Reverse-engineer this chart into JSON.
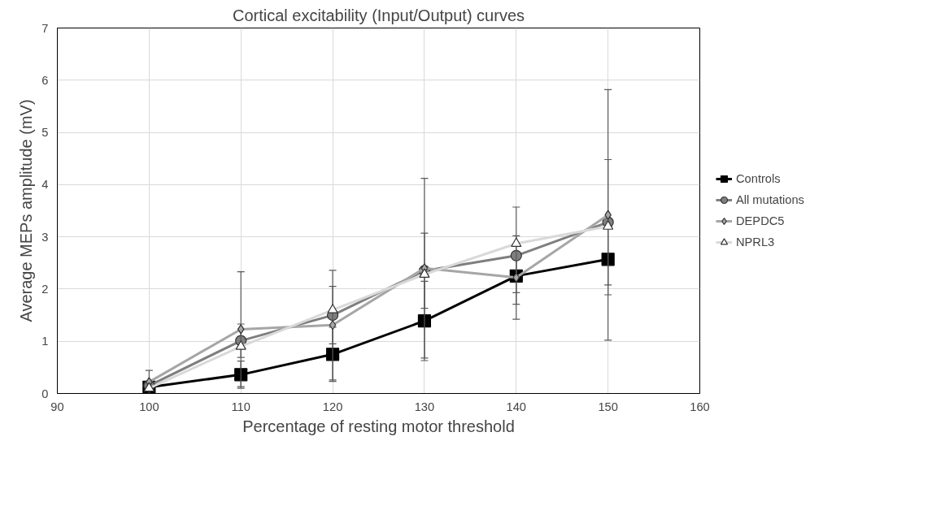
{
  "chart_data": {
    "type": "line",
    "title": "Cortical excitability (Input/Output) curves",
    "xlabel": "Percentage of resting motor threshold",
    "ylabel": "Average MEPs amplitude (mV)",
    "x": [
      100,
      110,
      120,
      130,
      140,
      150
    ],
    "xlim": [
      90,
      160
    ],
    "xticks": [
      90,
      100,
      110,
      120,
      130,
      140,
      150,
      160
    ],
    "ylim": [
      0,
      7
    ],
    "yticks": [
      0,
      1,
      2,
      3,
      4,
      5,
      6,
      7
    ],
    "grid": true,
    "legend": "right",
    "series": [
      {
        "name": "Controls",
        "color": "#000000",
        "marker": "square",
        "values": [
          0.12,
          0.36,
          0.75,
          1.39,
          2.25,
          2.57
        ],
        "errors": [
          null,
          0.26,
          0.52,
          0.76,
          0.32,
          0.68
        ]
      },
      {
        "name": "All mutations",
        "color": "#7f7f7f",
        "marker": "circle",
        "values": [
          0.15,
          1.01,
          1.5,
          2.35,
          2.64,
          3.28
        ],
        "errors": [
          null,
          0.32,
          0.55,
          0.72,
          0.93,
          1.2
        ]
      },
      {
        "name": "DEPDC5",
        "color": "#a6a6a6",
        "marker": "diamond",
        "values": [
          0.22,
          1.23,
          1.31,
          2.4,
          2.22,
          3.42
        ],
        "errors": [
          0.22,
          1.1,
          1.05,
          1.72,
          0.8,
          2.4
        ]
      },
      {
        "name": "NPRL3",
        "color": "#d9d9d9",
        "marker": "triangle",
        "values": [
          0.1,
          0.9,
          1.6,
          2.28,
          2.87,
          3.2
        ],
        "errors": [
          null,
          null,
          null,
          null,
          null,
          null
        ]
      }
    ]
  }
}
